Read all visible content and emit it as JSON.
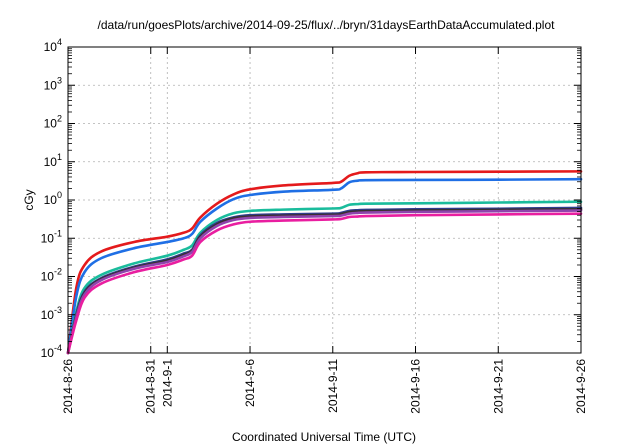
{
  "chart_data": {
    "type": "line",
    "title": "/data/run/goesPlots/archive/2014-09-25/flux/../bryn/31daysEarthDataAccumulated.plot",
    "xlabel": "Coordinated Universal Time (UTC)",
    "ylabel": "cGy",
    "y_scale": "log",
    "ylim": [
      0.0001,
      10000
    ],
    "xlim": [
      "2014-08-26",
      "2014-09-26"
    ],
    "grid": true,
    "x_ticks": [
      {
        "x": "2014-08-26",
        "label": "2014-8-26"
      },
      {
        "x": "2014-08-31",
        "label": "2014-8-31"
      },
      {
        "x": "2014-09-01",
        "label": "2014-9-1"
      },
      {
        "x": "2014-09-06",
        "label": "2014-9-6"
      },
      {
        "x": "2014-09-11",
        "label": "2014-9-11"
      },
      {
        "x": "2014-09-16",
        "label": "2014-9-16"
      },
      {
        "x": "2014-09-21",
        "label": "2014-9-21"
      },
      {
        "x": "2014-09-26",
        "label": "2014-9-26"
      }
    ],
    "y_ticks": [
      {
        "value": 0.0001,
        "base": "10",
        "exp": "-4"
      },
      {
        "value": 0.001,
        "base": "10",
        "exp": "-3"
      },
      {
        "value": 0.01,
        "base": "10",
        "exp": "-2"
      },
      {
        "value": 0.1,
        "base": "10",
        "exp": "-1"
      },
      {
        "value": 1,
        "base": "10",
        "exp": "0"
      },
      {
        "value": 10,
        "base": "10",
        "exp": "1"
      },
      {
        "value": 100,
        "base": "10",
        "exp": "2"
      },
      {
        "value": 1000,
        "base": "10",
        "exp": "3"
      },
      {
        "value": 10000,
        "base": "10",
        "exp": "4"
      }
    ],
    "x": [
      "2014-08-26",
      "2014-08-26T12:00",
      "2014-08-27",
      "2014-08-28",
      "2014-08-30",
      "2014-09-01",
      "2014-09-02",
      "2014-09-02T12:00",
      "2014-09-03",
      "2014-09-04",
      "2014-09-05",
      "2014-09-06",
      "2014-09-08",
      "2014-09-11",
      "2014-09-11T12:00",
      "2014-09-12",
      "2014-09-12T12:00",
      "2014-09-13",
      "2014-09-16",
      "2014-09-21",
      "2014-09-26"
    ],
    "series": [
      {
        "color": "#e41a1c",
        "values": [
          0.0001,
          0.005,
          0.02,
          0.045,
          0.08,
          0.11,
          0.14,
          0.18,
          0.35,
          0.8,
          1.4,
          1.9,
          2.4,
          2.8,
          3.0,
          4.3,
          5.0,
          5.3,
          5.4,
          5.5,
          5.6
        ]
      },
      {
        "color": "#1f6fe5",
        "values": [
          0.0001,
          0.003,
          0.013,
          0.03,
          0.055,
          0.08,
          0.1,
          0.13,
          0.27,
          0.6,
          1.05,
          1.35,
          1.65,
          1.85,
          2.0,
          2.9,
          3.2,
          3.3,
          3.35,
          3.4,
          3.5
        ]
      },
      {
        "color": "#1abc9c",
        "values": [
          0.0001,
          0.0012,
          0.005,
          0.011,
          0.022,
          0.035,
          0.05,
          0.065,
          0.14,
          0.3,
          0.45,
          0.52,
          0.56,
          0.6,
          0.62,
          0.75,
          0.78,
          0.8,
          0.82,
          0.86,
          0.9
        ]
      },
      {
        "color": "#2f3d8f",
        "values": [
          0.0001,
          0.001,
          0.004,
          0.009,
          0.018,
          0.028,
          0.04,
          0.05,
          0.12,
          0.25,
          0.35,
          0.4,
          0.42,
          0.44,
          0.46,
          0.52,
          0.54,
          0.55,
          0.57,
          0.59,
          0.62
        ]
      },
      {
        "color": "#3b2f2f",
        "values": [
          0.0001,
          0.0009,
          0.0037,
          0.0085,
          0.017,
          0.026,
          0.037,
          0.047,
          0.11,
          0.23,
          0.33,
          0.37,
          0.39,
          0.41,
          0.43,
          0.48,
          0.5,
          0.51,
          0.53,
          0.55,
          0.57
        ]
      },
      {
        "color": "#8e44ad",
        "values": [
          0.0001,
          0.00085,
          0.0034,
          0.008,
          0.016,
          0.024,
          0.034,
          0.044,
          0.1,
          0.21,
          0.3,
          0.34,
          0.36,
          0.38,
          0.39,
          0.44,
          0.46,
          0.47,
          0.49,
          0.51,
          0.53
        ]
      },
      {
        "color": "#e91ea0",
        "values": [
          0.0001,
          0.0007,
          0.0028,
          0.0065,
          0.013,
          0.02,
          0.028,
          0.035,
          0.08,
          0.16,
          0.23,
          0.27,
          0.29,
          0.31,
          0.32,
          0.36,
          0.37,
          0.38,
          0.4,
          0.42,
          0.44
        ]
      }
    ]
  }
}
